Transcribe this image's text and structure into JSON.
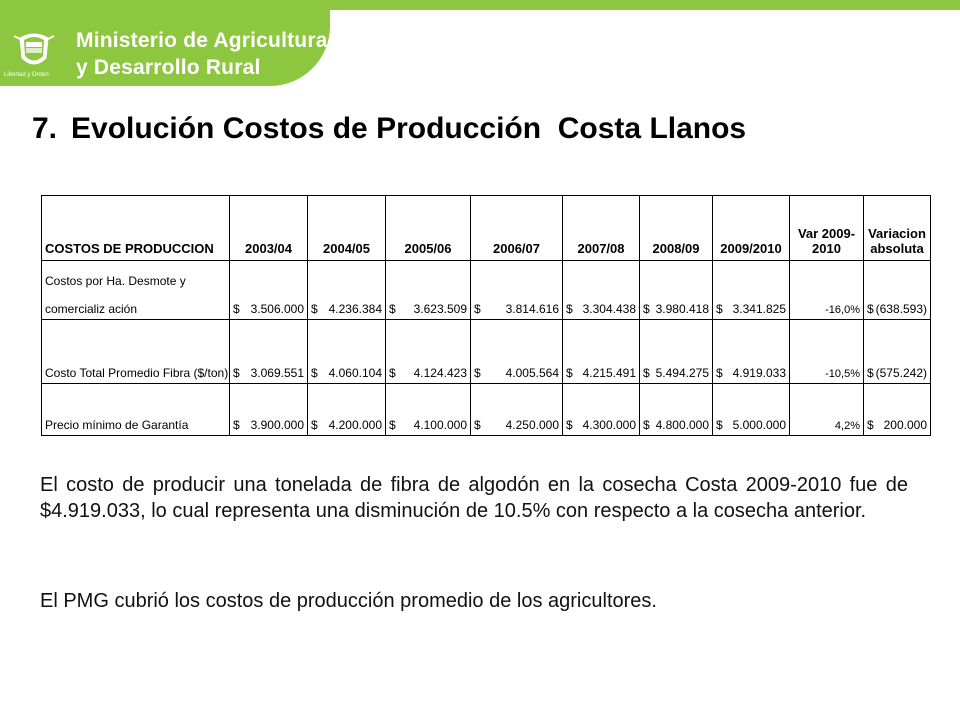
{
  "header": {
    "ministry_line1": "Ministerio de Agricultura",
    "ministry_line2": "y Desarrollo Rural",
    "crest_motto": "Libertad y Orden",
    "colors": {
      "brand_green": "#8dc63f",
      "white": "#ffffff"
    }
  },
  "title": {
    "number": "7.",
    "text": "Evolución Costos de Producción  Costa Llanos"
  },
  "table": {
    "headers": [
      "COSTOS DE PRODUCCION",
      "2003/04",
      "2004/05",
      "2005/06",
      "2006/07",
      "2007/08",
      "2008/09",
      "2009/2010",
      "Var 2009-\n2010",
      "Variacion\nabsoluta"
    ],
    "header_var_line1": "Var 2009-",
    "header_var_line2": "2010",
    "header_abs_line1": "Variacion",
    "header_abs_line2": "absoluta",
    "rows": [
      {
        "label_line1": "Costos por Ha. Desmote y",
        "label_line2": "comercializ ación",
        "values": [
          "3.506.000",
          "4.236.384",
          "3.623.509",
          "3.814.616",
          "3.304.438",
          "3.980.418",
          "3.341.825"
        ],
        "var": "-16,0%",
        "abs": "(638.593)"
      },
      {
        "label_line1": "Costo Total Promedio Fibra  ($/ton)",
        "label_line2": "",
        "values": [
          "3.069.551",
          "4.060.104",
          "4.124.423",
          "4.005.564",
          "4.215.491",
          "5.494.275",
          "4.919.033"
        ],
        "var": "-10,5%",
        "abs": "(575.242)"
      },
      {
        "label_line1": "Precio  mínimo de Garantía",
        "label_line2": "",
        "values": [
          "3.900.000",
          "4.200.000",
          "4.100.000",
          "4.250.000",
          "4.300.000",
          "4.800.000",
          "5.000.000"
        ],
        "var": "4,2%",
        "abs": "200.000"
      }
    ],
    "currency": "$"
  },
  "paragraphs": {
    "p1": "El costo de producir una tonelada de fibra de algodón en la cosecha Costa 2009-2010 fue de $4.919.033, lo cual  representa una disminución de 10.5%  con respecto a la cosecha anterior.",
    "p2": "El PMG  cubrió los costos de producción promedio de los agricultores."
  }
}
